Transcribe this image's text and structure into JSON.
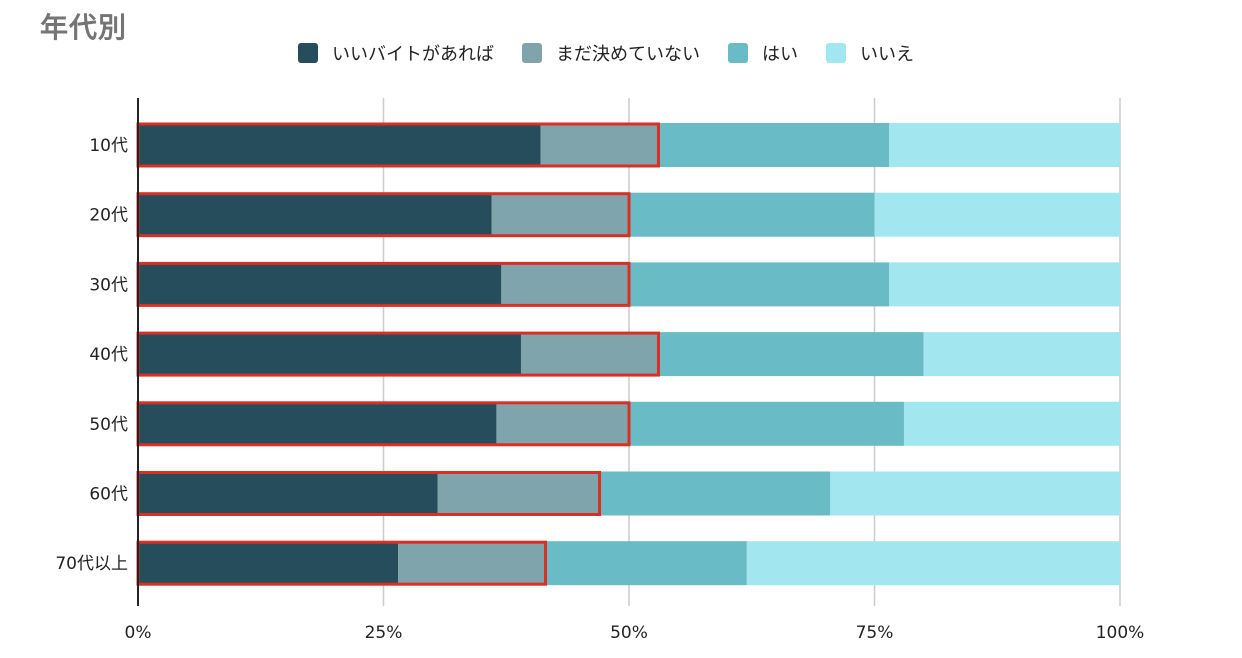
{
  "chart_data": {
    "type": "bar",
    "orientation": "horizontal",
    "stacked": "percent",
    "title": "年代別",
    "categories": [
      "10代",
      "20代",
      "30代",
      "40代",
      "50代",
      "60代",
      "70代以上"
    ],
    "series": [
      {
        "name": "いいバイトがあれば",
        "color": "#264d5c",
        "values": [
          41.0,
          36.0,
          37.0,
          39.0,
          36.5,
          30.5,
          26.5
        ]
      },
      {
        "name": "まだ決めていない",
        "color": "#80a4ab",
        "values": [
          12.0,
          14.0,
          13.0,
          14.0,
          13.5,
          16.5,
          15.0
        ]
      },
      {
        "name": "はい",
        "color": "#69bbc5",
        "values": [
          23.5,
          25.0,
          26.5,
          27.0,
          28.0,
          23.5,
          20.5
        ]
      },
      {
        "name": "いいえ",
        "color": "#a2e7ef",
        "values": [
          23.5,
          25.0,
          23.5,
          20.0,
          22.0,
          29.5,
          38.0
        ]
      }
    ],
    "highlight": {
      "color": "#d93025",
      "covers_series": [
        "いいバイトがあれば",
        "まだ決めていない"
      ]
    },
    "xlim": [
      0,
      100
    ],
    "xticks": [
      "0%",
      "25%",
      "50%",
      "75%",
      "100%"
    ],
    "grid": true,
    "legend_position": "top"
  }
}
